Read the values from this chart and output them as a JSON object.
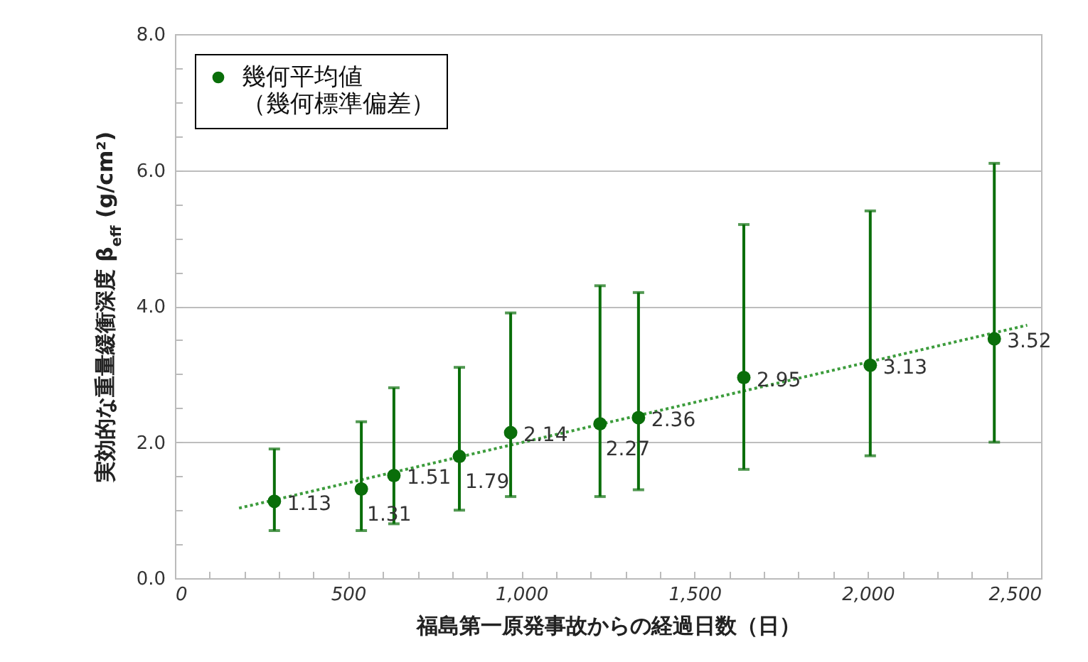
{
  "chart_data": {
    "type": "scatter",
    "xlabel": "福島第一原発事故からの経過日数（日）",
    "ylabel": "実効的な重量緩衝深度 β$_{eff}$ (g/cm²)",
    "xlim": [
      0,
      2500
    ],
    "xticks": [
      0,
      {
        "value": 100,
        "label": null
      },
      {
        "value": 200,
        "label": null
      },
      {
        "value": 300,
        "label": null
      },
      {
        "value": 400,
        "label": null
      },
      500,
      {
        "value": 600,
        "label": null
      },
      {
        "value": 700,
        "label": null
      },
      {
        "value": 800,
        "label": null
      },
      {
        "value": 900,
        "label": null
      },
      {
        "value": 1000,
        "label": "1,000"
      },
      {
        "value": 1100,
        "label": null
      },
      {
        "value": 1200,
        "label": null
      },
      {
        "value": 1300,
        "label": null
      },
      {
        "value": 1400,
        "label": null
      },
      {
        "value": 1500,
        "label": "1,500"
      },
      {
        "value": 1600,
        "label": null
      },
      {
        "value": 1700,
        "label": null
      },
      {
        "value": 1800,
        "label": null
      },
      {
        "value": 1900,
        "label": null
      },
      {
        "value": 2000,
        "label": "2,000"
      },
      {
        "value": 2100,
        "label": null
      },
      {
        "value": 2200,
        "label": null
      },
      {
        "value": 2300,
        "label": null
      },
      {
        "value": 2400,
        "label": null
      },
      {
        "value": 2500,
        "label": "2,500"
      }
    ],
    "ylim": [
      0,
      8
    ],
    "yticks": [
      {
        "value": 0,
        "label": "0.0"
      },
      {
        "value": 0.5,
        "label": null
      },
      {
        "value": 1,
        "label": null
      },
      {
        "value": 1.5,
        "label": null
      },
      {
        "value": 2,
        "label": "2.0"
      },
      {
        "value": 2.5,
        "label": null
      },
      {
        "value": 3,
        "label": null
      },
      {
        "value": 3.5,
        "label": null
      },
      {
        "value": 4,
        "label": "4.0"
      },
      {
        "value": 4.5,
        "label": null
      },
      {
        "value": 5,
        "label": null
      },
      {
        "value": 5.5,
        "label": null
      },
      {
        "value": 6,
        "label": "6.0"
      },
      {
        "value": 6.5,
        "label": null
      },
      {
        "value": 7,
        "label": null
      },
      {
        "value": 7.5,
        "label": null
      },
      {
        "value": 8,
        "label": "8.0"
      }
    ],
    "grid": "y",
    "legend": "top left",
    "series": [
      {
        "name": "幾何平均値（幾何標準偏差）",
        "color": "#0a6e0a",
        "marker": "circle",
        "x": [
          287,
          538,
          632,
          821,
          969,
          1227,
          1338,
          1642,
          2007,
          2365
        ],
        "values": [
          1.13,
          1.31,
          1.51,
          1.79,
          2.14,
          2.27,
          2.36,
          2.95,
          3.13,
          3.52
        ],
        "value_labels": [
          "1.13",
          "1.31",
          "1.51",
          "1.79",
          "2.14",
          "2.27",
          "2.36",
          "2.95",
          "3.13",
          "3.52"
        ],
        "errors": [
          [
            0.7,
            1.9
          ],
          [
            0.7,
            2.3
          ],
          [
            0.8,
            2.8
          ],
          [
            1.0,
            3.1
          ],
          [
            1.2,
            3.9
          ],
          [
            1.2,
            4.3
          ],
          [
            1.3,
            4.2
          ],
          [
            1.6,
            5.2
          ],
          [
            1.8,
            5.4
          ],
          [
            2.0,
            6.1
          ]
        ]
      },
      {
        "type": "line",
        "color": "#3c9c3c",
        "line_style": "dotted",
        "x": [
          185,
          2460
        ],
        "values": [
          1.03,
          3.72
        ]
      }
    ]
  }
}
